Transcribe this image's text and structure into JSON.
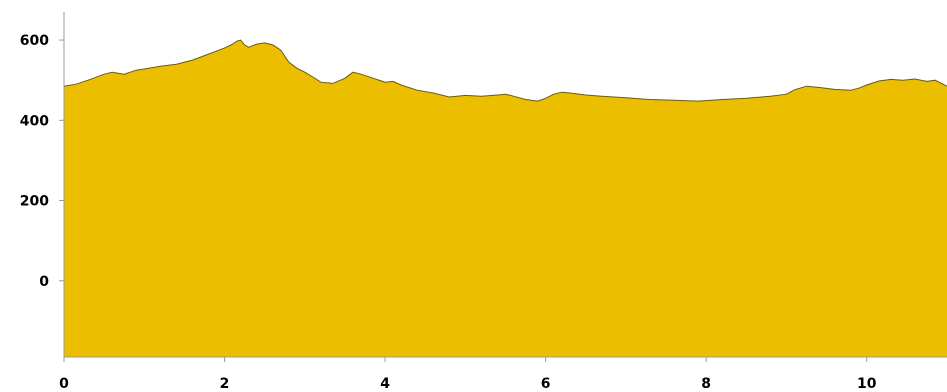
{
  "chart_data": {
    "type": "area",
    "title": "",
    "xlabel": "",
    "ylabel": "",
    "xlim": [
      0,
      11
    ],
    "ylim": [
      -190,
      670
    ],
    "x_ticks": [
      0,
      2,
      4,
      6,
      8,
      10
    ],
    "y_ticks": [
      0,
      200,
      400,
      600
    ],
    "x_tick_labels": [
      "0",
      "2",
      "4",
      "6",
      "8",
      "10"
    ],
    "y_tick_labels": [
      "0",
      "200",
      "400",
      "600"
    ],
    "grid": false,
    "legend": "none",
    "fill_color": "#ebbf00",
    "line_color": "#6b5a10",
    "series": [
      {
        "x": [
          0,
          0.15,
          0.3,
          0.5,
          0.6,
          0.75,
          0.9,
          1.0,
          1.2,
          1.4,
          1.6,
          1.8,
          2.0,
          2.1,
          2.15,
          2.2,
          2.25,
          2.3,
          2.4,
          2.5,
          2.6,
          2.7,
          2.8,
          2.9,
          3.0,
          3.1,
          3.2,
          3.35,
          3.5,
          3.6,
          3.7,
          3.85,
          4.0,
          4.1,
          4.2,
          4.4,
          4.6,
          4.8,
          5.0,
          5.2,
          5.4,
          5.5,
          5.6,
          5.75,
          5.9,
          6.0,
          6.1,
          6.2,
          6.3,
          6.5,
          6.7,
          7.0,
          7.3,
          7.6,
          7.9,
          8.2,
          8.5,
          8.8,
          9.0,
          9.1,
          9.25,
          9.4,
          9.6,
          9.8,
          9.9,
          10.0,
          10.15,
          10.3,
          10.45,
          10.6,
          10.75,
          10.85,
          11.0
        ],
        "y": [
          485,
          490,
          500,
          515,
          520,
          515,
          525,
          528,
          535,
          540,
          550,
          565,
          580,
          590,
          597,
          600,
          588,
          582,
          590,
          593,
          588,
          575,
          545,
          530,
          520,
          508,
          495,
          492,
          505,
          520,
          515,
          505,
          495,
          497,
          488,
          475,
          468,
          458,
          462,
          460,
          463,
          465,
          460,
          452,
          448,
          455,
          465,
          470,
          468,
          463,
          460,
          456,
          452,
          450,
          448,
          452,
          455,
          460,
          465,
          476,
          485,
          482,
          477,
          475,
          480,
          488,
          498,
          502,
          500,
          503,
          497,
          500,
          485
        ]
      }
    ]
  }
}
